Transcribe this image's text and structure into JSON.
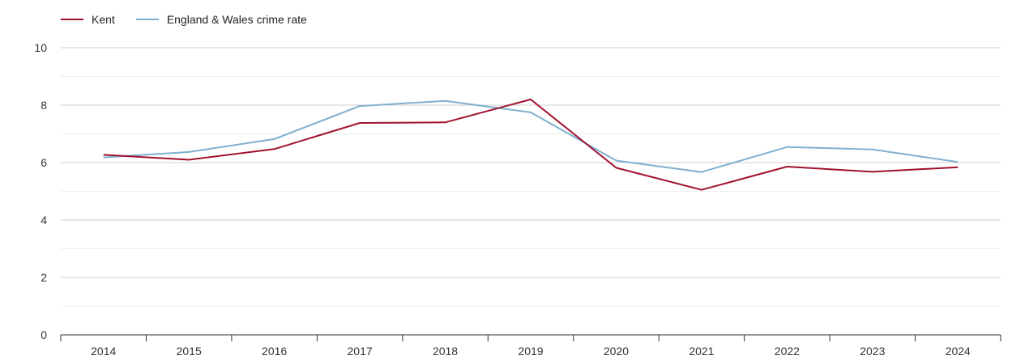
{
  "chart_data": {
    "type": "line",
    "title": "",
    "xlabel": "",
    "ylabel": "",
    "x": [
      "2014",
      "2015",
      "2016",
      "2017",
      "2018",
      "2019",
      "2020",
      "2021",
      "2022",
      "2023",
      "2024"
    ],
    "ylim": [
      0,
      10
    ],
    "yticks": [
      0,
      2,
      4,
      6,
      8,
      10
    ],
    "grid": true,
    "legend_position": "top-left",
    "series": [
      {
        "name": "Kent",
        "color": "#a0112e",
        "values": [
          6.27,
          6.1,
          6.47,
          7.38,
          7.4,
          8.2,
          5.82,
          5.05,
          5.86,
          5.68,
          5.84
        ]
      },
      {
        "name": "England & Wales crime rate",
        "color": "#7fb0d0",
        "values": [
          6.18,
          6.37,
          6.82,
          7.97,
          8.15,
          7.75,
          6.07,
          5.67,
          6.54,
          6.46,
          6.02
        ]
      }
    ]
  }
}
